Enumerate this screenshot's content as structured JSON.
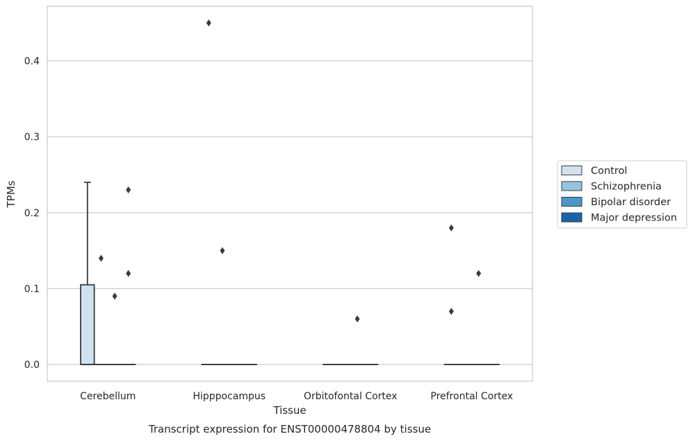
{
  "chart_data": {
    "type": "box",
    "title": "Transcript expression for ENST00000478804 by tissue",
    "xlabel": "Tissue",
    "ylabel": "TPMs",
    "ylim": [
      -0.022,
      0.472
    ],
    "yticks": [
      0.0,
      0.1,
      0.2,
      0.3,
      0.4
    ],
    "ytick_labels": [
      "0.0",
      "0.1",
      "0.2",
      "0.3",
      "0.4"
    ],
    "grid": "horizontal",
    "legend_placement": "right",
    "categories": [
      "Cerebellum",
      "Hipppocampus",
      "Orbitofontal Cortex",
      "Prefrontal Cortex"
    ],
    "series": [
      {
        "name": "Control",
        "color": "#d0e1f2",
        "boxes": [
          {
            "category": "Cerebellum",
            "min": 0.0,
            "q1": 0.0,
            "median": 0.0,
            "q3": 0.105,
            "max": 0.24,
            "outliers": []
          },
          {
            "category": "Hipppocampus",
            "min": 0.0,
            "q1": 0.0,
            "median": 0.0,
            "q3": 0.0,
            "max": 0.0,
            "outliers": [
              0.45
            ]
          },
          {
            "category": "Orbitofontal Cortex",
            "min": 0.0,
            "q1": 0.0,
            "median": 0.0,
            "q3": 0.0,
            "max": 0.0,
            "outliers": []
          },
          {
            "category": "Prefrontal Cortex",
            "min": 0.0,
            "q1": 0.0,
            "median": 0.0,
            "q3": 0.0,
            "max": 0.0,
            "outliers": [
              0.18,
              0.07
            ]
          }
        ]
      },
      {
        "name": "Schizophrenia",
        "color": "#94c4df",
        "boxes": [
          {
            "category": "Cerebellum",
            "min": 0.0,
            "q1": 0.0,
            "median": 0.0,
            "q3": 0.0,
            "max": 0.0,
            "outliers": [
              0.14
            ]
          },
          {
            "category": "Hipppocampus",
            "min": 0.0,
            "q1": 0.0,
            "median": 0.0,
            "q3": 0.0,
            "max": 0.0,
            "outliers": [
              0.15
            ]
          },
          {
            "category": "Orbitofontal Cortex",
            "min": 0.0,
            "q1": 0.0,
            "median": 0.0,
            "q3": 0.0,
            "max": 0.0,
            "outliers": []
          },
          {
            "category": "Prefrontal Cortex",
            "min": 0.0,
            "q1": 0.0,
            "median": 0.0,
            "q3": 0.0,
            "max": 0.0,
            "outliers": []
          }
        ]
      },
      {
        "name": "Bipolar disorder",
        "color": "#4a98c9",
        "boxes": [
          {
            "category": "Cerebellum",
            "min": 0.0,
            "q1": 0.0,
            "median": 0.0,
            "q3": 0.0,
            "max": 0.0,
            "outliers": [
              0.09
            ]
          },
          {
            "category": "Hipppocampus",
            "min": 0.0,
            "q1": 0.0,
            "median": 0.0,
            "q3": 0.0,
            "max": 0.0,
            "outliers": []
          },
          {
            "category": "Orbitofontal Cortex",
            "min": 0.0,
            "q1": 0.0,
            "median": 0.0,
            "q3": 0.0,
            "max": 0.0,
            "outliers": [
              0.06
            ]
          },
          {
            "category": "Prefrontal Cortex",
            "min": 0.0,
            "q1": 0.0,
            "median": 0.0,
            "q3": 0.0,
            "max": 0.0,
            "outliers": [
              0.12
            ]
          }
        ]
      },
      {
        "name": "Major depression",
        "color": "#1764ab",
        "boxes": [
          {
            "category": "Cerebellum",
            "min": 0.0,
            "q1": 0.0,
            "median": 0.0,
            "q3": 0.0,
            "max": 0.0,
            "outliers": [
              0.23,
              0.12
            ]
          },
          {
            "category": "Hipppocampus",
            "min": 0.0,
            "q1": 0.0,
            "median": 0.0,
            "q3": 0.0,
            "max": 0.0,
            "outliers": []
          },
          {
            "category": "Orbitofontal Cortex",
            "min": 0.0,
            "q1": 0.0,
            "median": 0.0,
            "q3": 0.0,
            "max": 0.0,
            "outliers": []
          },
          {
            "category": "Prefrontal Cortex",
            "min": 0.0,
            "q1": 0.0,
            "median": 0.0,
            "q3": 0.0,
            "max": 0.0,
            "outliers": []
          }
        ]
      }
    ]
  }
}
